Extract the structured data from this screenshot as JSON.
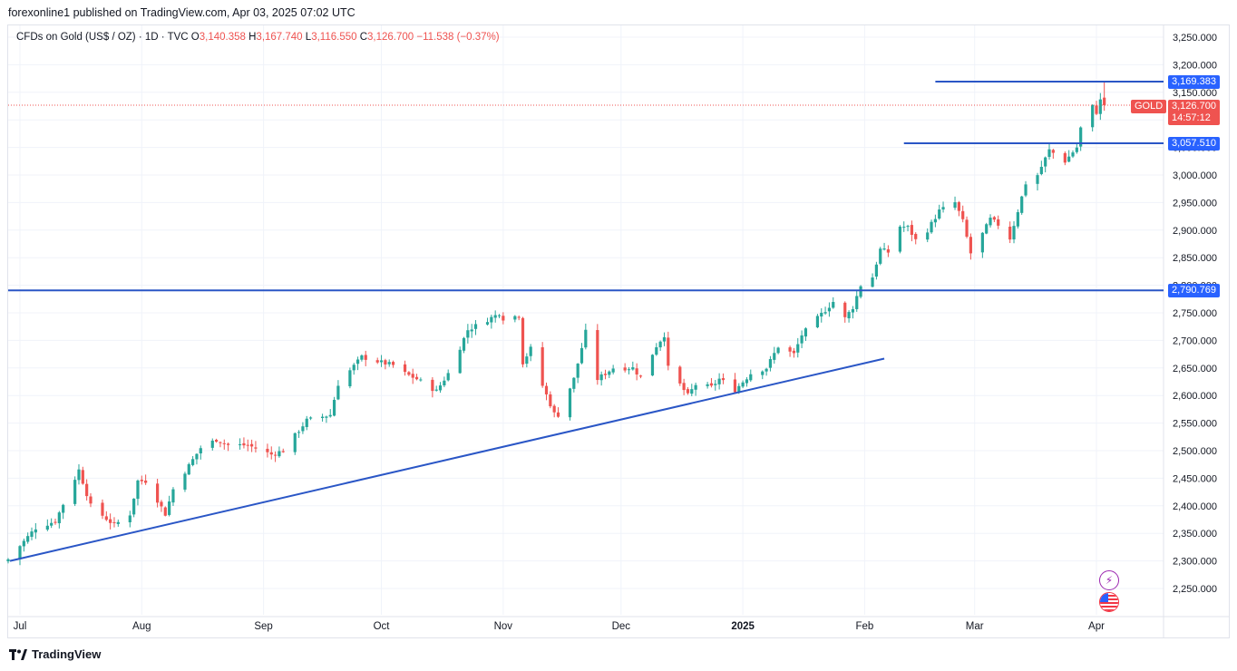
{
  "header": {
    "published_by": "forexonline1 published on TradingView.com, Apr 03, 2025 07:02 UTC"
  },
  "ohlc": {
    "symbol": "CFDs on Gold (US$ / OZ) · 1D · TVC",
    "open_label": "O",
    "open": "3,140.358",
    "high_label": "H",
    "high": "3,167.740",
    "low_label": "L",
    "low": "3,116.550",
    "close_label": "C",
    "close": "3,126.700",
    "change": "−11.538 (−0.37%)"
  },
  "price_badges": {
    "resistance_top": "3,169.383",
    "resistance_mid": "3,057.510",
    "horizontal_level": "2,790.769",
    "symbol_tag": "GOLD",
    "last_price": "3,126.700",
    "countdown": "14:57:12"
  },
  "footer": {
    "brand": "TradingView"
  },
  "colors": {
    "up": "#26a69a",
    "down": "#ef5350",
    "line": "#2a56c6",
    "badge": "#2962ff",
    "grid": "#f0f3fa"
  },
  "icons": {
    "alert": "lightning-icon",
    "country": "us-flag-icon"
  },
  "chart_data": {
    "type": "candlestick",
    "timeframe": "1D",
    "y_axis": {
      "ticks": [
        "3,250.000",
        "3,200.000",
        "3,150.000",
        "3,100.000",
        "3,050.000",
        "3,000.000",
        "2,950.000",
        "2,900.000",
        "2,850.000",
        "2,800.000",
        "2,750.000",
        "2,700.000",
        "2,650.000",
        "2,600.000",
        "2,550.000",
        "2,500.000",
        "2,450.000",
        "2,400.000",
        "2,350.000",
        "2,300.000",
        "2,250.000"
      ],
      "range": [
        2230,
        3270
      ]
    },
    "x_axis": {
      "ticks": [
        {
          "label": "Jul",
          "date": "2024-07-01"
        },
        {
          "label": "Aug",
          "date": "2024-08-01"
        },
        {
          "label": "Sep",
          "date": "2024-09-01"
        },
        {
          "label": "Oct",
          "date": "2024-10-01"
        },
        {
          "label": "Nov",
          "date": "2024-11-01"
        },
        {
          "label": "Dec",
          "date": "2024-12-01"
        },
        {
          "label": "2025",
          "date": "2025-01-01",
          "bold": true
        },
        {
          "label": "Feb",
          "date": "2025-02-01"
        },
        {
          "label": "Mar",
          "date": "2025-03-01"
        },
        {
          "label": "Apr",
          "date": "2025-04-01"
        }
      ]
    },
    "anchors": [
      [
        "2024-06-28",
        2303
      ],
      [
        "2024-07-05",
        2360
      ],
      [
        "2024-07-10",
        2372
      ],
      [
        "2024-07-16",
        2465
      ],
      [
        "2024-07-19",
        2400
      ],
      [
        "2024-07-25",
        2365
      ],
      [
        "2024-07-29",
        2385
      ],
      [
        "2024-07-31",
        2445
      ],
      [
        "2024-08-02",
        2445
      ],
      [
        "2024-08-05",
        2410
      ],
      [
        "2024-08-07",
        2385
      ],
      [
        "2024-08-09",
        2430
      ],
      [
        "2024-08-16",
        2505
      ],
      [
        "2024-08-20",
        2520
      ],
      [
        "2024-08-23",
        2510
      ],
      [
        "2024-08-28",
        2510
      ],
      [
        "2024-09-03",
        2493
      ],
      [
        "2024-09-06",
        2500
      ],
      [
        "2024-09-12",
        2555
      ],
      [
        "2024-09-18",
        2565
      ],
      [
        "2024-09-20",
        2621
      ],
      [
        "2024-09-26",
        2670
      ],
      [
        "2024-10-01",
        2660
      ],
      [
        "2024-10-04",
        2655
      ],
      [
        "2024-10-07",
        2640
      ],
      [
        "2024-10-10",
        2630
      ],
      [
        "2024-10-15",
        2608
      ],
      [
        "2024-10-18",
        2640
      ],
      [
        "2024-10-23",
        2719
      ],
      [
        "2024-10-30",
        2745
      ],
      [
        "2024-10-31",
        2750
      ],
      [
        "2024-11-01",
        2740
      ],
      [
        "2024-11-05",
        2745
      ],
      [
        "2024-11-06",
        2660
      ],
      [
        "2024-11-08",
        2685
      ],
      [
        "2024-11-11",
        2618
      ],
      [
        "2024-11-14",
        2567
      ],
      [
        "2024-11-15",
        2565
      ],
      [
        "2024-11-19",
        2630
      ],
      [
        "2024-11-22",
        2715
      ],
      [
        "2024-11-25",
        2630
      ],
      [
        "2024-11-29",
        2650
      ],
      [
        "2024-12-04",
        2650
      ],
      [
        "2024-12-06",
        2633
      ],
      [
        "2024-12-10",
        2690
      ],
      [
        "2024-12-12",
        2710
      ],
      [
        "2024-12-13",
        2650
      ],
      [
        "2024-12-18",
        2600
      ],
      [
        "2024-12-20",
        2620
      ],
      [
        "2024-12-24",
        2615
      ],
      [
        "2024-12-26",
        2630
      ],
      [
        "2024-12-30",
        2610
      ],
      [
        "2025-01-03",
        2640
      ],
      [
        "2025-01-07",
        2650
      ],
      [
        "2025-01-10",
        2689
      ],
      [
        "2025-01-14",
        2675
      ],
      [
        "2025-01-16",
        2710
      ],
      [
        "2025-01-22",
        2755
      ],
      [
        "2025-01-24",
        2770
      ],
      [
        "2025-01-27",
        2740
      ],
      [
        "2025-01-29",
        2760
      ],
      [
        "2025-01-31",
        2800
      ],
      [
        "2025-02-03",
        2815
      ],
      [
        "2025-02-05",
        2865
      ],
      [
        "2025-02-07",
        2860
      ],
      [
        "2025-02-10",
        2907
      ],
      [
        "2025-02-12",
        2905
      ],
      [
        "2025-02-14",
        2882
      ],
      [
        "2025-02-17",
        2900
      ],
      [
        "2025-02-20",
        2935
      ],
      [
        "2025-02-24",
        2950
      ],
      [
        "2025-02-26",
        2916
      ],
      [
        "2025-02-28",
        2858
      ],
      [
        "2025-03-03",
        2893
      ],
      [
        "2025-03-05",
        2920
      ],
      [
        "2025-03-07",
        2910
      ],
      [
        "2025-03-10",
        2885
      ],
      [
        "2025-03-12",
        2935
      ],
      [
        "2025-03-14",
        2985
      ],
      [
        "2025-03-17",
        3000
      ],
      [
        "2025-03-20",
        3045
      ],
      [
        "2025-03-24",
        3025
      ],
      [
        "2025-03-27",
        3050
      ],
      [
        "2025-03-28",
        3085
      ],
      [
        "2025-03-31",
        3124
      ],
      [
        "2025-04-01",
        3114
      ],
      [
        "2025-04-02",
        3135
      ]
    ],
    "last_candle": {
      "date": "2025-04-03",
      "open": 3140.358,
      "high": 3167.74,
      "low": 3116.55,
      "close": 3126.7
    },
    "annotations": {
      "horizontal_lines": [
        {
          "value": 3169.383,
          "from": "2025-02-19",
          "to": "2025-04-23"
        },
        {
          "value": 3057.51,
          "from": "2025-02-11",
          "to": "2025-04-23"
        },
        {
          "value": 2790.769,
          "from": "2024-06-28",
          "to": "2025-04-23"
        }
      ],
      "trendline": [
        {
          "date": "2024-06-28",
          "value": 2300
        },
        {
          "date": "2025-02-06",
          "value": 2667
        }
      ],
      "last_price_line": 3126.7
    }
  }
}
